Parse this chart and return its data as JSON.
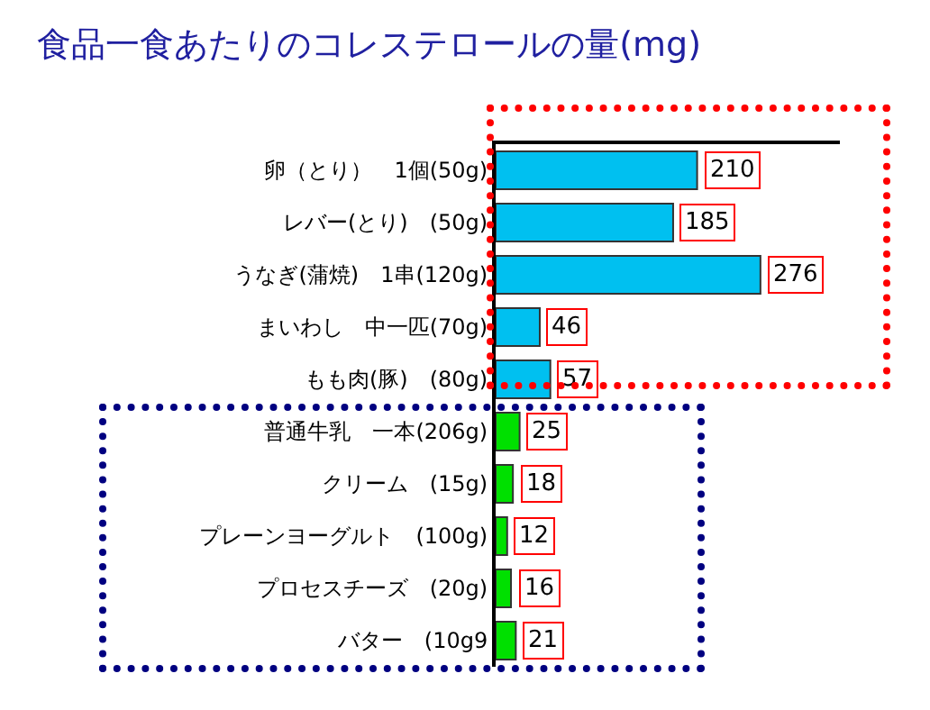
{
  "chart_data": {
    "type": "bar",
    "orientation": "horizontal",
    "title": "食品一食あたりのコレステロールの量(mg)",
    "categories": [
      "卵（とり）　1個(50g)",
      "レバー(とり)　(50g)",
      "うなぎ(蒲焼)　1串(120g)",
      "まいわし　中一匹(70g)",
      "もも肉(豚)　(80g)",
      "普通牛乳　一本(206g)",
      "クリーム　(15g)",
      "プレーンヨーグルト　(100g)",
      "プロセスチーズ　(20g)",
      "バター　(10g9"
    ],
    "values": [
      210,
      185,
      276,
      46,
      57,
      25,
      18,
      12,
      16,
      21
    ],
    "colors": [
      "#00c0f0",
      "#00c0f0",
      "#00c0f0",
      "#00c0f0",
      "#00c0f0",
      "#00e000",
      "#00e000",
      "#00e000",
      "#00e000",
      "#00e000"
    ],
    "data_labels": true,
    "grid": false,
    "legend": false
  }
}
